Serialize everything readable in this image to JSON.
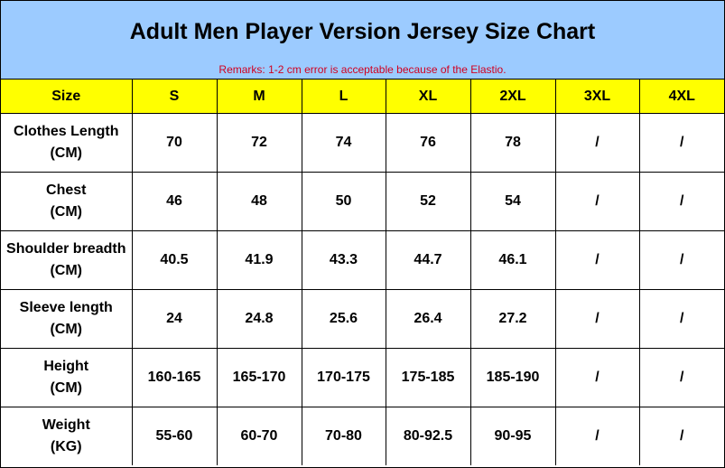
{
  "header": {
    "title": "Adult Men Player Version Jersey Size Chart",
    "remarks": "Remarks: 1-2 cm error is acceptable because of the Elastio."
  },
  "table": {
    "columns": [
      "Size",
      "S",
      "M",
      "L",
      "XL",
      "2XL",
      "3XL",
      "4XL"
    ],
    "rows": [
      {
        "label": [
          "Clothes Length",
          "(CM)"
        ],
        "values": [
          "70",
          "72",
          "74",
          "76",
          "78",
          "/",
          "/"
        ]
      },
      {
        "label": [
          "Chest",
          "(CM)"
        ],
        "values": [
          "46",
          "48",
          "50",
          "52",
          "54",
          "/",
          "/"
        ]
      },
      {
        "label": [
          "Shoulder breadth",
          "(CM)"
        ],
        "values": [
          "40.5",
          "41.9",
          "43.3",
          "44.7",
          "46.1",
          "/",
          "/"
        ]
      },
      {
        "label": [
          "Sleeve length",
          "(CM)"
        ],
        "values": [
          "24",
          "24.8",
          "25.6",
          "26.4",
          "27.2",
          "/",
          "/"
        ]
      },
      {
        "label": [
          "Height",
          "(CM)"
        ],
        "values": [
          "160-165",
          "165-170",
          "170-175",
          "175-185",
          "185-190",
          "/",
          "/"
        ]
      },
      {
        "label": [
          "Weight",
          "(KG)"
        ],
        "values": [
          "55-60",
          "60-70",
          "70-80",
          "80-92.5",
          "90-95",
          "/",
          "/"
        ]
      }
    ]
  }
}
